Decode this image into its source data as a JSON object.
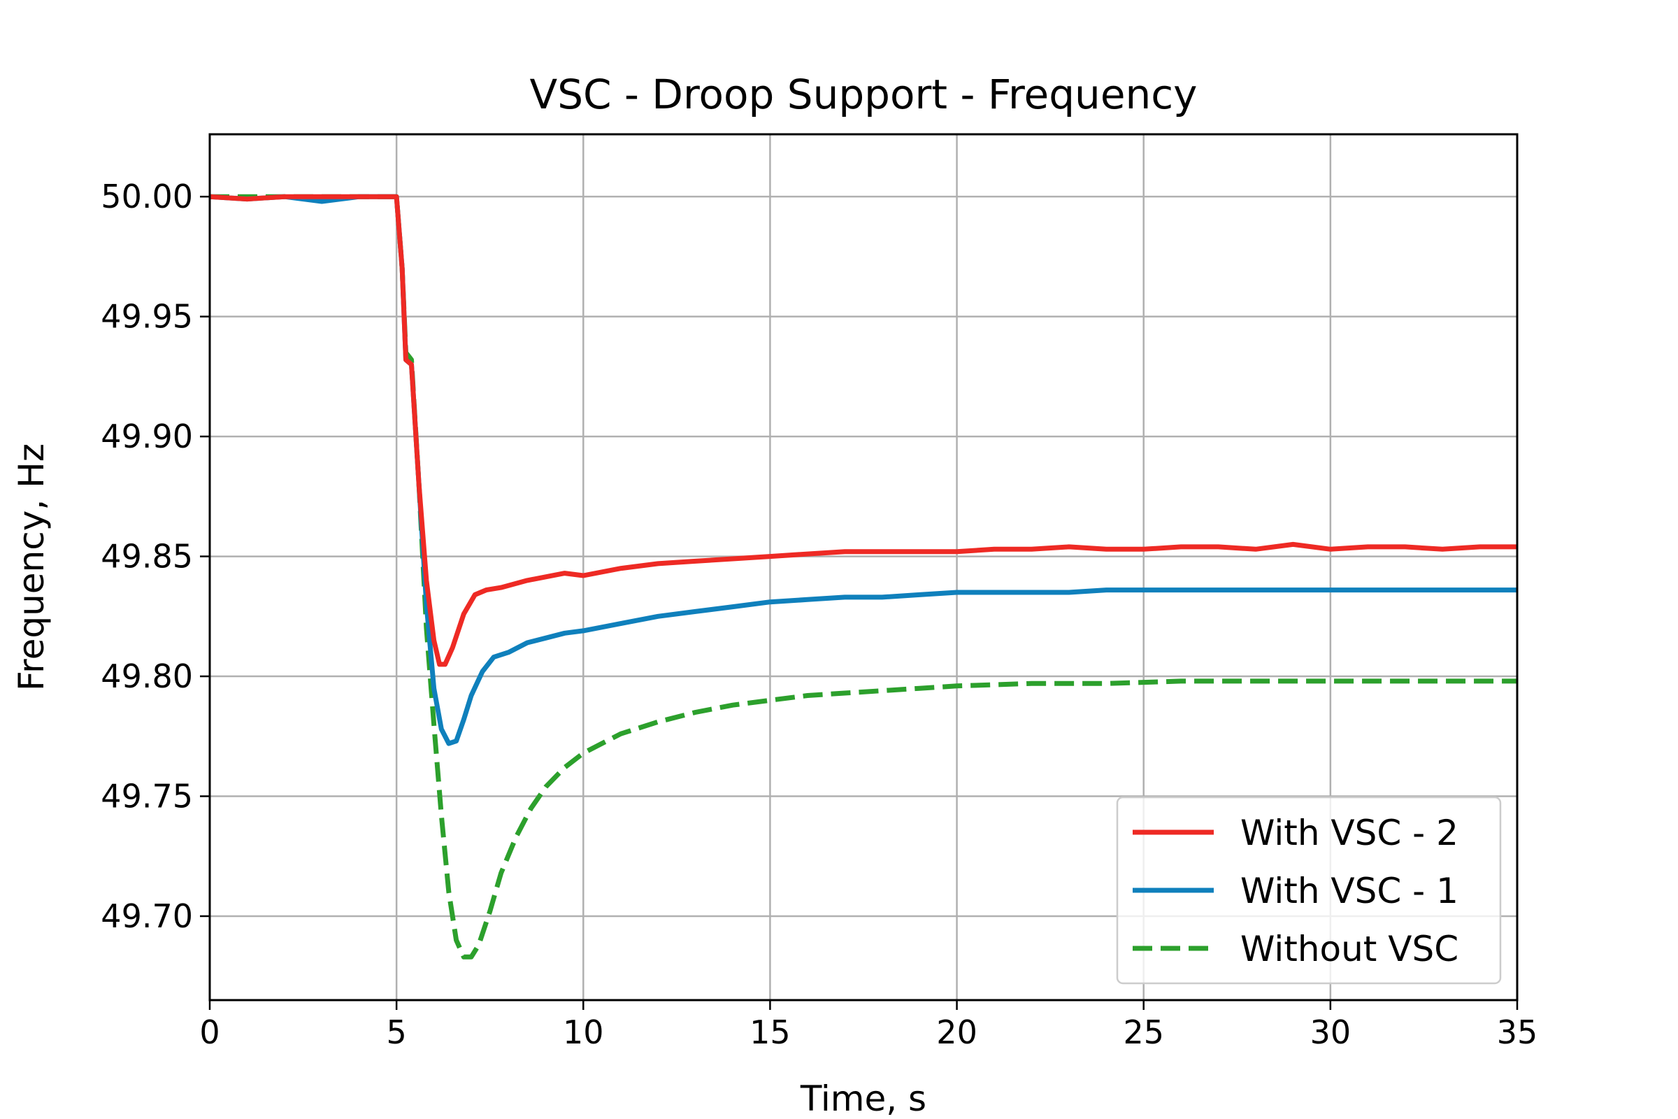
{
  "chart_data": {
    "type": "line",
    "title": "VSC - Droop Support - Frequency",
    "xlabel": "Time, s",
    "ylabel": "Frequency, Hz",
    "xlim": [
      0,
      35
    ],
    "ylim": [
      49.665,
      50.026
    ],
    "xticks": [
      0,
      5,
      10,
      15,
      20,
      25,
      30,
      35
    ],
    "xtick_labels": [
      "0",
      "5",
      "10",
      "15",
      "20",
      "25",
      "30",
      "35"
    ],
    "yticks": [
      49.7,
      49.75,
      49.8,
      49.85,
      49.9,
      49.95,
      50.0
    ],
    "ytick_labels": [
      "49.70",
      "49.75",
      "49.80",
      "49.85",
      "49.90",
      "49.95",
      "50.00"
    ],
    "grid": true,
    "legend_position": "lower-right",
    "series": [
      {
        "name": "With VSC - 2",
        "color": "#ee2a24",
        "style": "solid",
        "x": [
          0,
          1,
          2,
          3,
          4,
          5.0,
          5.15,
          5.25,
          5.4,
          5.6,
          5.8,
          6.0,
          6.15,
          6.3,
          6.5,
          6.8,
          7.1,
          7.4,
          7.8,
          8.5,
          9.5,
          10,
          11,
          12,
          13,
          14,
          15,
          16,
          17,
          18,
          19,
          20,
          21,
          22,
          23,
          24,
          25,
          26,
          27,
          28,
          29,
          30,
          31,
          32,
          33,
          34,
          35
        ],
        "y": [
          50.0,
          49.999,
          50.0,
          50.0,
          50.0,
          50.0,
          49.97,
          49.932,
          49.93,
          49.88,
          49.84,
          49.815,
          49.805,
          49.805,
          49.812,
          49.826,
          49.834,
          49.836,
          49.837,
          49.84,
          49.843,
          49.842,
          49.845,
          49.847,
          49.848,
          49.849,
          49.85,
          49.851,
          49.852,
          49.852,
          49.852,
          49.852,
          49.853,
          49.853,
          49.854,
          49.853,
          49.853,
          49.854,
          49.854,
          49.853,
          49.855,
          49.853,
          49.854,
          49.854,
          49.853,
          49.854,
          49.854
        ]
      },
      {
        "name": "With VSC - 1",
        "color": "#0f80bc",
        "style": "solid",
        "x": [
          0,
          1,
          2,
          3,
          4,
          5.0,
          5.15,
          5.25,
          5.4,
          5.6,
          5.8,
          6.0,
          6.2,
          6.4,
          6.6,
          6.8,
          7.0,
          7.3,
          7.6,
          8.0,
          8.5,
          9.0,
          9.5,
          10,
          11,
          12,
          13,
          14,
          15,
          16,
          17,
          18,
          19,
          20,
          21,
          22,
          23,
          24,
          25,
          26,
          27,
          28,
          29,
          30,
          31,
          32,
          33,
          34,
          35
        ],
        "y": [
          50.0,
          49.999,
          50.0,
          49.998,
          50.0,
          50.0,
          49.97,
          49.932,
          49.93,
          49.88,
          49.83,
          49.795,
          49.778,
          49.772,
          49.773,
          49.782,
          49.792,
          49.802,
          49.808,
          49.81,
          49.814,
          49.816,
          49.818,
          49.819,
          49.822,
          49.825,
          49.827,
          49.829,
          49.831,
          49.832,
          49.833,
          49.833,
          49.834,
          49.835,
          49.835,
          49.835,
          49.835,
          49.836,
          49.836,
          49.836,
          49.836,
          49.836,
          49.836,
          49.836,
          49.836,
          49.836,
          49.836,
          49.836,
          49.836
        ]
      },
      {
        "name": "Without VSC",
        "color": "#2ca02c",
        "style": "dashed",
        "x": [
          0,
          1,
          2,
          3,
          4,
          5.0,
          5.15,
          5.25,
          5.4,
          5.6,
          5.8,
          6.0,
          6.2,
          6.4,
          6.6,
          6.8,
          7.0,
          7.2,
          7.5,
          7.8,
          8.2,
          8.6,
          9.0,
          9.5,
          10,
          11,
          12,
          13,
          14,
          15,
          16,
          17,
          18,
          19,
          20,
          22,
          24,
          26,
          28,
          30,
          32,
          35
        ],
        "y": [
          50.0,
          50.0,
          50.0,
          50.0,
          50.0,
          50.0,
          49.97,
          49.935,
          49.932,
          49.88,
          49.82,
          49.78,
          49.742,
          49.71,
          49.69,
          49.683,
          49.683,
          49.688,
          49.702,
          49.718,
          49.733,
          49.745,
          49.754,
          49.762,
          49.768,
          49.776,
          49.781,
          49.785,
          49.788,
          49.79,
          49.792,
          49.793,
          49.794,
          49.795,
          49.796,
          49.797,
          49.797,
          49.798,
          49.798,
          49.798,
          49.798,
          49.798
        ]
      }
    ]
  }
}
